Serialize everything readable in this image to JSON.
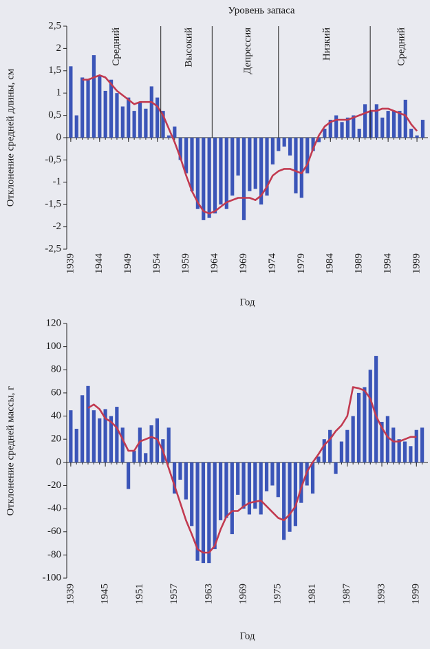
{
  "chart_data": [
    {
      "type": "bar",
      "title": "Уровень запаса",
      "y_label": "Отклонение средней длины, см",
      "x_label": "Год",
      "x": [
        1939,
        1940,
        1941,
        1942,
        1943,
        1944,
        1945,
        1946,
        1947,
        1948,
        1949,
        1950,
        1951,
        1952,
        1953,
        1954,
        1955,
        1956,
        1957,
        1958,
        1959,
        1960,
        1961,
        1962,
        1963,
        1964,
        1965,
        1966,
        1967,
        1968,
        1969,
        1970,
        1971,
        1972,
        1973,
        1974,
        1975,
        1976,
        1977,
        1978,
        1979,
        1980,
        1981,
        1982,
        1983,
        1984,
        1985,
        1986,
        1987,
        1988,
        1989,
        1990,
        1991,
        1992,
        1993,
        1994,
        1995,
        1996,
        1997,
        1998,
        1999,
        2000
      ],
      "series": [
        {
          "type": "bar",
          "color": "#3b55b8",
          "values": [
            1.6,
            0.5,
            1.35,
            1.3,
            1.85,
            1.4,
            1.05,
            1.3,
            1.0,
            0.7,
            0.9,
            0.6,
            0.8,
            0.65,
            1.15,
            0.9,
            0.6,
            0.05,
            0.25,
            -0.5,
            -0.8,
            -1.2,
            -1.6,
            -1.85,
            -1.8,
            -1.7,
            -1.5,
            -1.6,
            -1.3,
            -0.85,
            -1.85,
            -1.2,
            -1.15,
            -1.5,
            -1.3,
            -0.6,
            -0.3,
            -0.2,
            -0.4,
            -1.25,
            -1.35,
            -0.8,
            -0.3,
            -0.1,
            0.2,
            0.4,
            0.5,
            0.35,
            0.45,
            0.5,
            0.2,
            0.75,
            0.6,
            0.75,
            0.45,
            0.6,
            0.6,
            0.6,
            0.85,
            0.2,
            0.05,
            0.4
          ]
        },
        {
          "type": "line",
          "color": "#c23a50",
          "values": [
            null,
            null,
            1.3,
            1.3,
            1.35,
            1.4,
            1.35,
            1.2,
            1.05,
            0.95,
            0.85,
            0.75,
            0.8,
            0.8,
            0.8,
            0.7,
            0.5,
            0.2,
            -0.1,
            -0.45,
            -0.85,
            -1.2,
            -1.45,
            -1.65,
            -1.7,
            -1.65,
            -1.55,
            -1.45,
            -1.4,
            -1.35,
            -1.35,
            -1.35,
            -1.4,
            -1.3,
            -1.1,
            -0.85,
            -0.75,
            -0.7,
            -0.7,
            -0.75,
            -0.8,
            -0.6,
            -0.25,
            0.05,
            0.25,
            0.35,
            0.4,
            0.4,
            0.4,
            0.45,
            0.5,
            0.55,
            0.6,
            0.6,
            0.65,
            0.65,
            0.6,
            0.55,
            0.5,
            0.3,
            0.15,
            null
          ]
        }
      ],
      "xlim": [
        1938.3,
        2000.9
      ],
      "xticks": [
        1939,
        1944,
        1949,
        1954,
        1959,
        1964,
        1969,
        1974,
        1979,
        1984,
        1989,
        1994,
        1999
      ],
      "ylim": [
        -2.5,
        2.5
      ],
      "yticks": [
        {
          "value": 2.5,
          "label": "2,5"
        },
        2,
        {
          "value": 1.5,
          "label": "1,5"
        },
        1,
        {
          "value": 0.5,
          "label": "0,5"
        },
        0,
        {
          "value": -0.5,
          "label": "-0,5"
        },
        -1,
        {
          "value": -1.5,
          "label": "-1,5"
        },
        -2,
        {
          "value": -2.5,
          "label": "-2,5"
        }
      ],
      "dividers": [
        1954.6,
        1963.5,
        1975,
        1990.9
      ],
      "phase_labels": [
        "Средний",
        "Высокий",
        "Депрессия",
        "Низкий",
        "Средний"
      ]
    },
    {
      "type": "bar",
      "y_label": "Отклонение средней массы, г",
      "x_label": "Год",
      "x": [
        1939,
        1940,
        1941,
        1942,
        1943,
        1944,
        1945,
        1946,
        1947,
        1948,
        1949,
        1950,
        1951,
        1952,
        1953,
        1954,
        1955,
        1956,
        1957,
        1958,
        1959,
        1960,
        1961,
        1962,
        1963,
        1964,
        1965,
        1966,
        1967,
        1968,
        1969,
        1970,
        1971,
        1972,
        1973,
        1974,
        1975,
        1976,
        1977,
        1978,
        1979,
        1980,
        1981,
        1982,
        1983,
        1984,
        1985,
        1986,
        1987,
        1988,
        1989,
        1990,
        1991,
        1992,
        1993,
        1994,
        1995,
        1996,
        1997,
        1998,
        1999,
        2000
      ],
      "series": [
        {
          "type": "bar",
          "color": "#3b55b8",
          "values": [
            45,
            29,
            58,
            66,
            45,
            38,
            46,
            40,
            48,
            30,
            -23,
            10,
            30,
            8,
            32,
            38,
            20,
            30,
            -27,
            -15,
            -32,
            -55,
            -85,
            -87,
            -87,
            -75,
            -50,
            -48,
            -62,
            -28,
            -40,
            -45,
            -40,
            -45,
            -25,
            -20,
            -30,
            -67,
            -60,
            -55,
            -35,
            -20,
            -27,
            5,
            20,
            28,
            -10,
            18,
            28,
            40,
            60,
            65,
            80,
            92,
            35,
            40,
            30,
            20,
            18,
            14,
            28,
            30
          ]
        },
        {
          "type": "line",
          "color": "#c23a50",
          "values": [
            null,
            null,
            null,
            47,
            50,
            46,
            38,
            35,
            30,
            20,
            10,
            10,
            18,
            20,
            22,
            20,
            10,
            -5,
            -20,
            -35,
            -50,
            -62,
            -75,
            -78,
            -78,
            -72,
            -58,
            -47,
            -42,
            -42,
            -38,
            -35,
            -34,
            -33,
            -38,
            -43,
            -48,
            -50,
            -45,
            -38,
            -22,
            -8,
            0,
            7,
            15,
            20,
            27,
            32,
            40,
            65,
            64,
            62,
            55,
            40,
            30,
            22,
            18,
            18,
            20,
            22,
            22,
            null
          ]
        }
      ],
      "xlim": [
        1938.3,
        2001
      ],
      "xticks": [
        1939,
        1945,
        1951,
        1957,
        1963,
        1969,
        1975,
        1981,
        1987,
        1993,
        1999
      ],
      "ylim": [
        -100,
        120
      ],
      "yticks": [
        120,
        100,
        80,
        60,
        40,
        20,
        0,
        -20,
        -40,
        -60,
        -80,
        -100
      ]
    }
  ]
}
